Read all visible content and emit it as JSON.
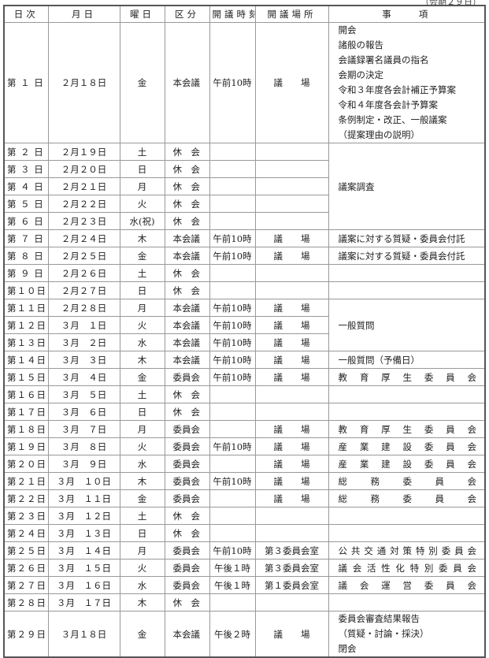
{
  "note": "（会期２９日）",
  "headers": [
    "日次",
    "月日",
    "曜日",
    "区分",
    "開議時刻",
    "開議場所",
    "事　　項"
  ],
  "rows": [
    {
      "day": "第 １ 日",
      "date": "２月１８日",
      "wd": "金",
      "type": "本会議",
      "time": "午前10時",
      "place": "議　　場",
      "item": "開会\n諸般の報告\n会議録署名議員の指名\n会期の決定\n令和３年度各会計補正予算案\n令和４年度各会計予算案\n条例制定・改正、一般議案\n（提案理由の説明）"
    },
    {
      "day": "第 ２ 日",
      "date": "２月１９日",
      "wd": "土",
      "type": "休　会",
      "time": "",
      "place": "",
      "item": "議案調査"
    },
    {
      "day": "第 ３ 日",
      "date": "２月２０日",
      "wd": "日",
      "type": "休　会",
      "time": "",
      "place": ""
    },
    {
      "day": "第 ４ 日",
      "date": "２月２１日",
      "wd": "月",
      "type": "休　会",
      "time": "",
      "place": ""
    },
    {
      "day": "第 ５ 日",
      "date": "２月２２日",
      "wd": "火",
      "type": "休　会",
      "time": "",
      "place": ""
    },
    {
      "day": "第 ６ 日",
      "date": "２月２３日",
      "wd": "水(祝)",
      "type": "休　会",
      "time": "",
      "place": ""
    },
    {
      "day": "第 ７ 日",
      "date": "２月２４日",
      "wd": "木",
      "type": "本会議",
      "time": "午前10時",
      "place": "議　　場",
      "item": "議案に対する質疑・委員会付託"
    },
    {
      "day": "第 ８ 日",
      "date": "２月２５日",
      "wd": "金",
      "type": "本会議",
      "time": "午前10時",
      "place": "議　　場",
      "item": "議案に対する質疑・委員会付託"
    },
    {
      "day": "第 ９ 日",
      "date": "２月２６日",
      "wd": "土",
      "type": "休　会",
      "time": "",
      "place": "",
      "item": ""
    },
    {
      "day": "第１０日",
      "date": "２月２７日",
      "wd": "日",
      "type": "休　会",
      "time": "",
      "place": "",
      "item": ""
    },
    {
      "day": "第１１日",
      "date": "２月２８日",
      "wd": "月",
      "type": "本会議",
      "time": "午前10時",
      "place": "議　　場",
      "item": "一般質問"
    },
    {
      "day": "第１２日",
      "date": "３月　１日",
      "wd": "火",
      "type": "本会議",
      "time": "午前10時",
      "place": "議　　場"
    },
    {
      "day": "第１３日",
      "date": "３月　２日",
      "wd": "水",
      "type": "本会議",
      "time": "午前10時",
      "place": "議　　場"
    },
    {
      "day": "第１４日",
      "date": "３月　３日",
      "wd": "木",
      "type": "本会議",
      "time": "午前10時",
      "place": "議　　場",
      "item": "一般質問（予備日）"
    },
    {
      "day": "第１５日",
      "date": "３月　４日",
      "wd": "金",
      "type": "委員会",
      "time": "午前10時",
      "place": "議　　場",
      "item": "教育厚生委員会",
      "just": true
    },
    {
      "day": "第１６日",
      "date": "３月　５日",
      "wd": "土",
      "type": "休　会",
      "time": "",
      "place": "",
      "item": ""
    },
    {
      "day": "第１７日",
      "date": "３月　６日",
      "wd": "日",
      "type": "休　会",
      "time": "",
      "place": "",
      "item": ""
    },
    {
      "day": "第１８日",
      "date": "３月　７日",
      "wd": "月",
      "type": "委員会",
      "time": "",
      "place": "議　　場",
      "item": "教育厚生委員会",
      "just": true
    },
    {
      "day": "第１９日",
      "date": "３月　８日",
      "wd": "火",
      "type": "委員会",
      "time": "午前10時",
      "place": "議　　場",
      "item": "産業建設委員会",
      "just": true
    },
    {
      "day": "第２０日",
      "date": "３月　９日",
      "wd": "水",
      "type": "委員会",
      "time": "",
      "place": "議　　場",
      "item": "産業建設委員会",
      "just": true
    },
    {
      "day": "第２１日",
      "date": "３月　１０日",
      "wd": "木",
      "type": "委員会",
      "time": "午前10時",
      "place": "議　　場",
      "item": "総務委員会",
      "just": true
    },
    {
      "day": "第２２日",
      "date": "３月　１１日",
      "wd": "金",
      "type": "委員会",
      "time": "",
      "place": "議　　場",
      "item": "総務委員会",
      "just": true
    },
    {
      "day": "第２３日",
      "date": "３月　１２日",
      "wd": "土",
      "type": "休　会",
      "time": "",
      "place": "",
      "item": ""
    },
    {
      "day": "第２４日",
      "date": "３月　１３日",
      "wd": "日",
      "type": "休　会",
      "time": "",
      "place": "",
      "item": ""
    },
    {
      "day": "第２５日",
      "date": "３月　１４日",
      "wd": "月",
      "type": "委員会",
      "time": "午前10時",
      "place": "第３委員会室",
      "item": "公共交通対策特別委員会",
      "just": true
    },
    {
      "day": "第２６日",
      "date": "３月　１５日",
      "wd": "火",
      "type": "委員会",
      "time": "午後１時",
      "place": "第３委員会室",
      "item": "議会活性化特別委員会",
      "just": true
    },
    {
      "day": "第２７日",
      "date": "３月　１６日",
      "wd": "水",
      "type": "委員会",
      "time": "午後１時",
      "place": "第１委員会室",
      "item": "議会運営委員会",
      "just": true
    },
    {
      "day": "第２８日",
      "date": "３月　１７日",
      "wd": "木",
      "type": "休　会",
      "time": "",
      "place": "",
      "item": ""
    },
    {
      "day": "第２９日",
      "date": "３月１８日",
      "wd": "金",
      "type": "本会議",
      "time": "午後２時",
      "place": "議　　場",
      "item": "委員会審査結果報告\n（質疑・討論・採決）\n閉会"
    }
  ]
}
